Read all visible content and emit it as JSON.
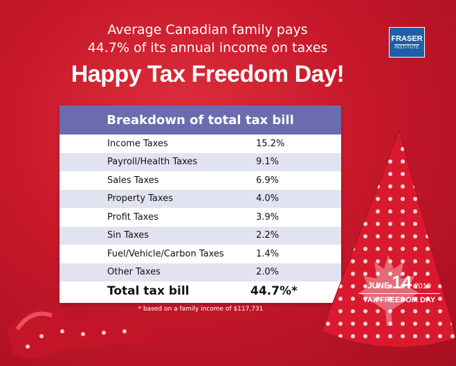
{
  "subtitle": {
    "line1": "Average Canadian family pays",
    "line2": "44.7% of its annual income on taxes"
  },
  "headline": "Happy Tax Freedom Day!",
  "logo": {
    "name": "FRASER",
    "sub": "INSTITUTE"
  },
  "table": {
    "title": "Breakdown of total tax bill",
    "rows": [
      {
        "label": "Income Taxes",
        "value": "15.2%"
      },
      {
        "label": "Payroll/Health Taxes",
        "value": "9.1%"
      },
      {
        "label": "Sales Taxes",
        "value": "6.9%"
      },
      {
        "label": "Property Taxes",
        "value": "4.0%"
      },
      {
        "label": "Profit Taxes",
        "value": "3.9%"
      },
      {
        "label": "Sin Taxes",
        "value": "2.2%"
      },
      {
        "label": "Fuel/Vehicle/Carbon Taxes",
        "value": "1.4%"
      },
      {
        "label": "Other Taxes",
        "value": "2.0%"
      }
    ],
    "total": {
      "label": "Total tax bill",
      "value": "44.7%*"
    },
    "footnote": "* based on a family income of $117,731"
  },
  "hat": {
    "month": "JUNE",
    "day": "14",
    "year": "2019",
    "title": "TAX FREEDOM DAY"
  },
  "colors": {
    "background": "#c8192b",
    "table_header": "#6b6bb0",
    "row_alt": "#e2e3f1",
    "logo": "#1f5fa6"
  }
}
